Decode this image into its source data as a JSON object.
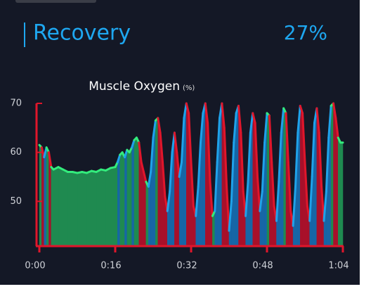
{
  "header": {
    "title": "Recovery",
    "value": "27%"
  },
  "chart_data": {
    "type": "area",
    "title": "Muscle Oxygen",
    "unit": "(%)",
    "x": [
      0,
      0.5,
      1,
      1.5,
      2,
      2.5,
      3,
      4,
      5,
      6,
      7,
      8,
      9,
      10,
      11,
      12,
      13,
      14,
      15,
      16,
      16.5,
      17,
      17.5,
      18,
      18.5,
      19,
      19.5,
      20,
      20.5,
      21,
      21.5,
      22,
      22.5,
      23,
      23.5,
      24,
      24.5,
      25,
      25.5,
      26,
      26.5,
      27,
      27.5,
      28,
      28.5,
      29,
      29.5,
      30,
      30.5,
      31,
      31.5,
      32,
      32.5,
      33,
      33.5,
      34,
      34.5,
      35,
      35.5,
      36,
      36.5,
      37,
      37.5,
      38,
      38.5,
      39,
      39.5,
      40,
      40.5,
      41,
      41.5,
      42,
      42.5,
      43,
      43.5,
      44,
      44.5,
      45,
      45.5,
      46,
      46.5,
      47,
      47.5,
      48,
      48.5,
      49,
      49.5,
      50,
      50.5,
      51,
      51.5,
      52,
      52.5,
      53,
      53.5,
      54,
      54.5,
      55,
      55.5,
      56,
      56.5,
      57,
      57.5,
      58,
      58.5,
      59,
      59.5,
      60,
      60.5,
      61,
      61.5,
      62,
      62.5,
      63,
      63.5,
      64
    ],
    "series": [
      {
        "name": "Muscle Oxygen",
        "values": [
          61.5,
          61,
          59,
          61,
          60,
          57,
          56.5,
          57,
          56.5,
          56,
          56,
          55.8,
          56,
          55.8,
          56.2,
          56,
          56.5,
          56.3,
          56.8,
          57,
          58,
          59.5,
          60,
          59,
          60.5,
          60,
          61,
          62.5,
          63,
          62,
          58,
          56,
          54,
          53,
          56,
          63,
          66.5,
          67,
          64,
          58,
          51,
          48,
          52,
          60,
          64,
          60,
          55,
          58,
          67,
          70,
          68,
          58,
          49,
          47,
          53,
          62,
          68,
          70,
          66,
          54,
          47,
          48,
          58,
          67,
          70,
          65,
          53,
          44,
          50,
          62,
          68,
          69.5,
          64,
          52,
          47,
          54,
          64,
          68,
          66,
          55,
          48,
          52,
          62,
          68,
          67.5,
          58,
          49,
          46,
          54,
          64,
          69,
          68,
          58,
          48,
          45,
          53,
          64,
          69.5,
          68,
          58,
          49,
          46,
          55,
          66,
          69,
          64,
          53,
          46,
          52,
          63,
          69.5,
          70,
          67,
          63,
          62,
          62
        ]
      }
    ],
    "line_colors": {
      "rise": "#1fa2ea",
      "fall": "#e0162b",
      "flat": "#33ec7c"
    },
    "fill_colors": {
      "rise": "#1666a6",
      "fall": "#a8102a",
      "flat": "#1f8a50"
    },
    "axis_color": "#e0162b",
    "xlim": [
      0,
      64
    ],
    "xticks": [
      {
        "value": 0,
        "label": "0:00"
      },
      {
        "value": 16,
        "label": "0:16"
      },
      {
        "value": 32,
        "label": "0:32"
      },
      {
        "value": 48,
        "label": "0:48"
      },
      {
        "value": 64,
        "label": "1:04"
      }
    ],
    "ylim": [
      41,
      70
    ],
    "yticks": [
      50,
      60,
      70
    ]
  }
}
